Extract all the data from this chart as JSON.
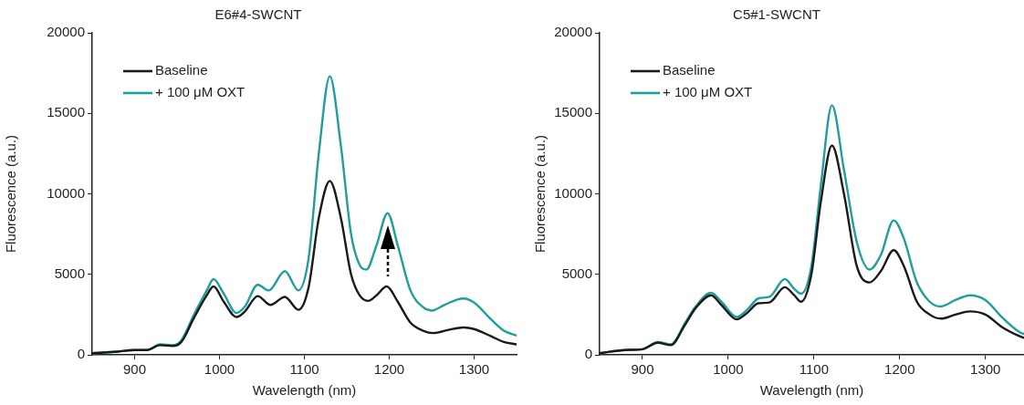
{
  "chart_data": [
    {
      "type": "line",
      "title": "E6#4-SWCNT",
      "xlabel": "Wavelength (nm)",
      "ylabel": "Fluorescence (a.u.)",
      "xlim": [
        850,
        1350
      ],
      "xticks": [
        900,
        1000,
        1100,
        1200,
        1300
      ],
      "ylim": [
        0,
        20000
      ],
      "yticks": [
        0,
        5000,
        10000,
        15000,
        20000
      ],
      "grid": false,
      "legend": "top left",
      "marker": "none",
      "line_style": "solid",
      "series": [
        {
          "name": "Baseline",
          "color": "#1a1a1a",
          "x": [
            850,
            880,
            900,
            915,
            930,
            945,
            955,
            970,
            985,
            993,
            1005,
            1020,
            1030,
            1045,
            1060,
            1077,
            1093,
            1105,
            1117,
            1130,
            1143,
            1155,
            1165,
            1175,
            1185,
            1197,
            1210,
            1225,
            1240,
            1252,
            1270,
            1287,
            1300,
            1320,
            1335,
            1350
          ],
          "values": [
            100,
            200,
            300,
            300,
            600,
            550,
            800,
            2300,
            3700,
            4250,
            3300,
            2350,
            2700,
            3650,
            3100,
            3600,
            2800,
            4200,
            8500,
            10800,
            8500,
            5000,
            3700,
            3350,
            3700,
            4250,
            3300,
            2000,
            1500,
            1350,
            1550,
            1700,
            1600,
            1150,
            800,
            650
          ]
        },
        {
          "name": "+ 100 μM OXT",
          "color": "#1f9e9b",
          "x": [
            850,
            880,
            900,
            915,
            930,
            945,
            955,
            970,
            985,
            993,
            1005,
            1020,
            1030,
            1045,
            1058,
            1077,
            1093,
            1105,
            1117,
            1130,
            1143,
            1155,
            1165,
            1173,
            1185,
            1198,
            1210,
            1225,
            1240,
            1250,
            1265,
            1287,
            1300,
            1320,
            1335,
            1350
          ],
          "values": [
            100,
            200,
            300,
            300,
            650,
            600,
            900,
            2500,
            4000,
            4700,
            3800,
            2600,
            3000,
            4350,
            4000,
            5200,
            4000,
            6000,
            12500,
            17300,
            13000,
            7500,
            5600,
            5300,
            6800,
            8800,
            6800,
            4000,
            2950,
            2750,
            3100,
            3500,
            3250,
            2200,
            1500,
            1200
          ]
        }
      ]
    },
    {
      "type": "line",
      "title": "C5#1-SWCNT",
      "xlabel": "Wavelength (nm)",
      "ylabel": "Fluorescence (a.u.)",
      "xlim": [
        850,
        1345
      ],
      "xticks": [
        900,
        1000,
        1100,
        1200,
        1300
      ],
      "ylim": [
        0,
        20000
      ],
      "yticks": [
        0,
        5000,
        10000,
        15000,
        20000
      ],
      "grid": false,
      "legend": "top left",
      "marker": "none",
      "line_style": "solid",
      "series": [
        {
          "name": "Baseline",
          "color": "#1a1a1a",
          "x": [
            850,
            880,
            900,
            918,
            933,
            950,
            962,
            980,
            992,
            1010,
            1022,
            1035,
            1048,
            1066,
            1077,
            1085,
            1097,
            1108,
            1121,
            1135,
            1150,
            1165,
            1178,
            1193,
            1205,
            1220,
            1235,
            1248,
            1265,
            1282,
            1300,
            1320,
            1340,
            1345
          ],
          "values": [
            100,
            300,
            350,
            750,
            600,
            1900,
            2900,
            3700,
            3100,
            2200,
            2600,
            3200,
            3250,
            4200,
            3700,
            3300,
            5000,
            9500,
            13000,
            10000,
            5500,
            4500,
            5200,
            6500,
            5500,
            3300,
            2500,
            2250,
            2500,
            2700,
            2500,
            1700,
            1150,
            1050
          ]
        },
        {
          "name": "+ 100 μM OXT",
          "color": "#1f9e9b",
          "x": [
            850,
            880,
            900,
            918,
            933,
            950,
            962,
            980,
            992,
            1010,
            1022,
            1035,
            1048,
            1066,
            1077,
            1085,
            1097,
            1108,
            1121,
            1135,
            1150,
            1165,
            1178,
            1193,
            1205,
            1220,
            1235,
            1248,
            1265,
            1282,
            1300,
            1320,
            1340,
            1345
          ],
          "values": [
            100,
            300,
            350,
            800,
            650,
            2000,
            3000,
            3850,
            3300,
            2350,
            2800,
            3500,
            3600,
            4700,
            4100,
            3800,
            5500,
            10500,
            15500,
            11500,
            7000,
            5300,
            6200,
            8350,
            7200,
            4500,
            3300,
            3000,
            3400,
            3700,
            3400,
            2300,
            1400,
            1300
          ]
        }
      ]
    }
  ]
}
